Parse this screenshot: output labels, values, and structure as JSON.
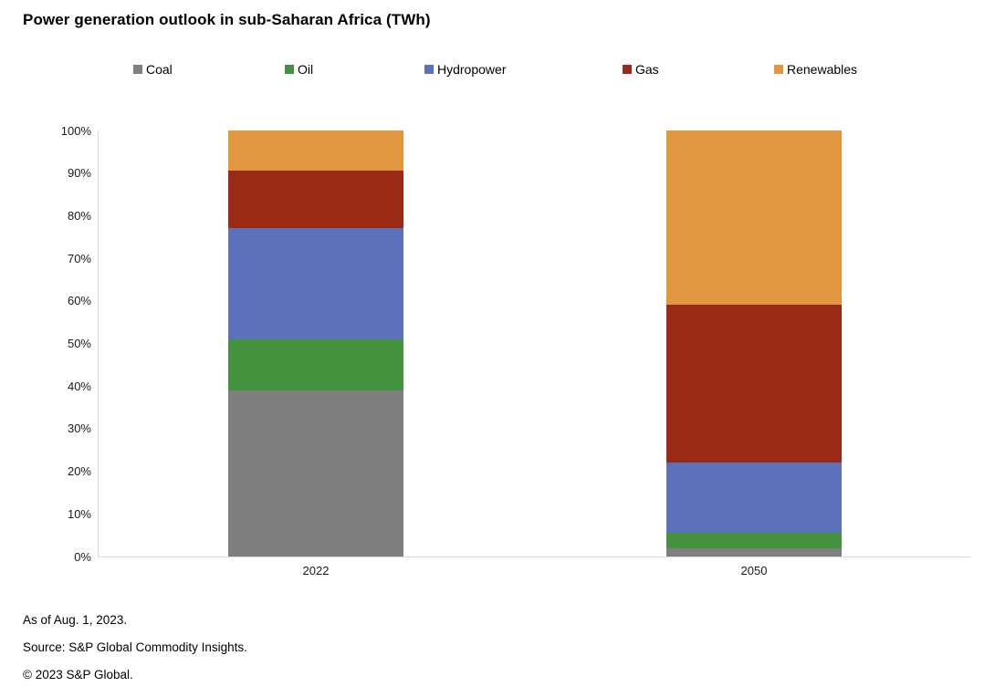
{
  "title": "Power generation outlook in sub-Saharan Africa (TWh)",
  "legend": [
    {
      "label": "Coal",
      "color": "#7f7f7f"
    },
    {
      "label": "Oil",
      "color": "#44913e"
    },
    {
      "label": "Hydropower",
      "color": "#5c71b9"
    },
    {
      "label": "Gas",
      "color": "#9a2916"
    },
    {
      "label": "Renewables",
      "color": "#e0973f"
    }
  ],
  "chart_data": {
    "type": "bar",
    "subtype": "stacked-100-percent",
    "title": "Power generation outlook in sub-Saharan Africa (TWh)",
    "categories": [
      "2022",
      "2050"
    ],
    "series": [
      {
        "name": "Coal",
        "color": "#7f7f7f",
        "values": [
          39,
          2
        ]
      },
      {
        "name": "Oil",
        "color": "#44913e",
        "values": [
          12,
          3.5
        ]
      },
      {
        "name": "Hydropower",
        "color": "#5c71b9",
        "values": [
          26,
          16.5
        ]
      },
      {
        "name": "Gas",
        "color": "#9a2916",
        "values": [
          13.5,
          37
        ]
      },
      {
        "name": "Renewables",
        "color": "#e0973f",
        "values": [
          9.5,
          41
        ]
      }
    ],
    "unit": "%",
    "ylim": [
      0,
      100
    ],
    "yticks": [
      "0%",
      "10%",
      "20%",
      "30%",
      "40%",
      "50%",
      "60%",
      "70%",
      "80%",
      "90%",
      "100%"
    ],
    "grid": false,
    "legend_position": "top",
    "axis_color": "#d9d9d9"
  },
  "footer": {
    "as_of": "As of Aug. 1, 2023.",
    "source": "Source: S&P Global Commodity Insights.",
    "copyright": "© 2023 S&P Global."
  }
}
